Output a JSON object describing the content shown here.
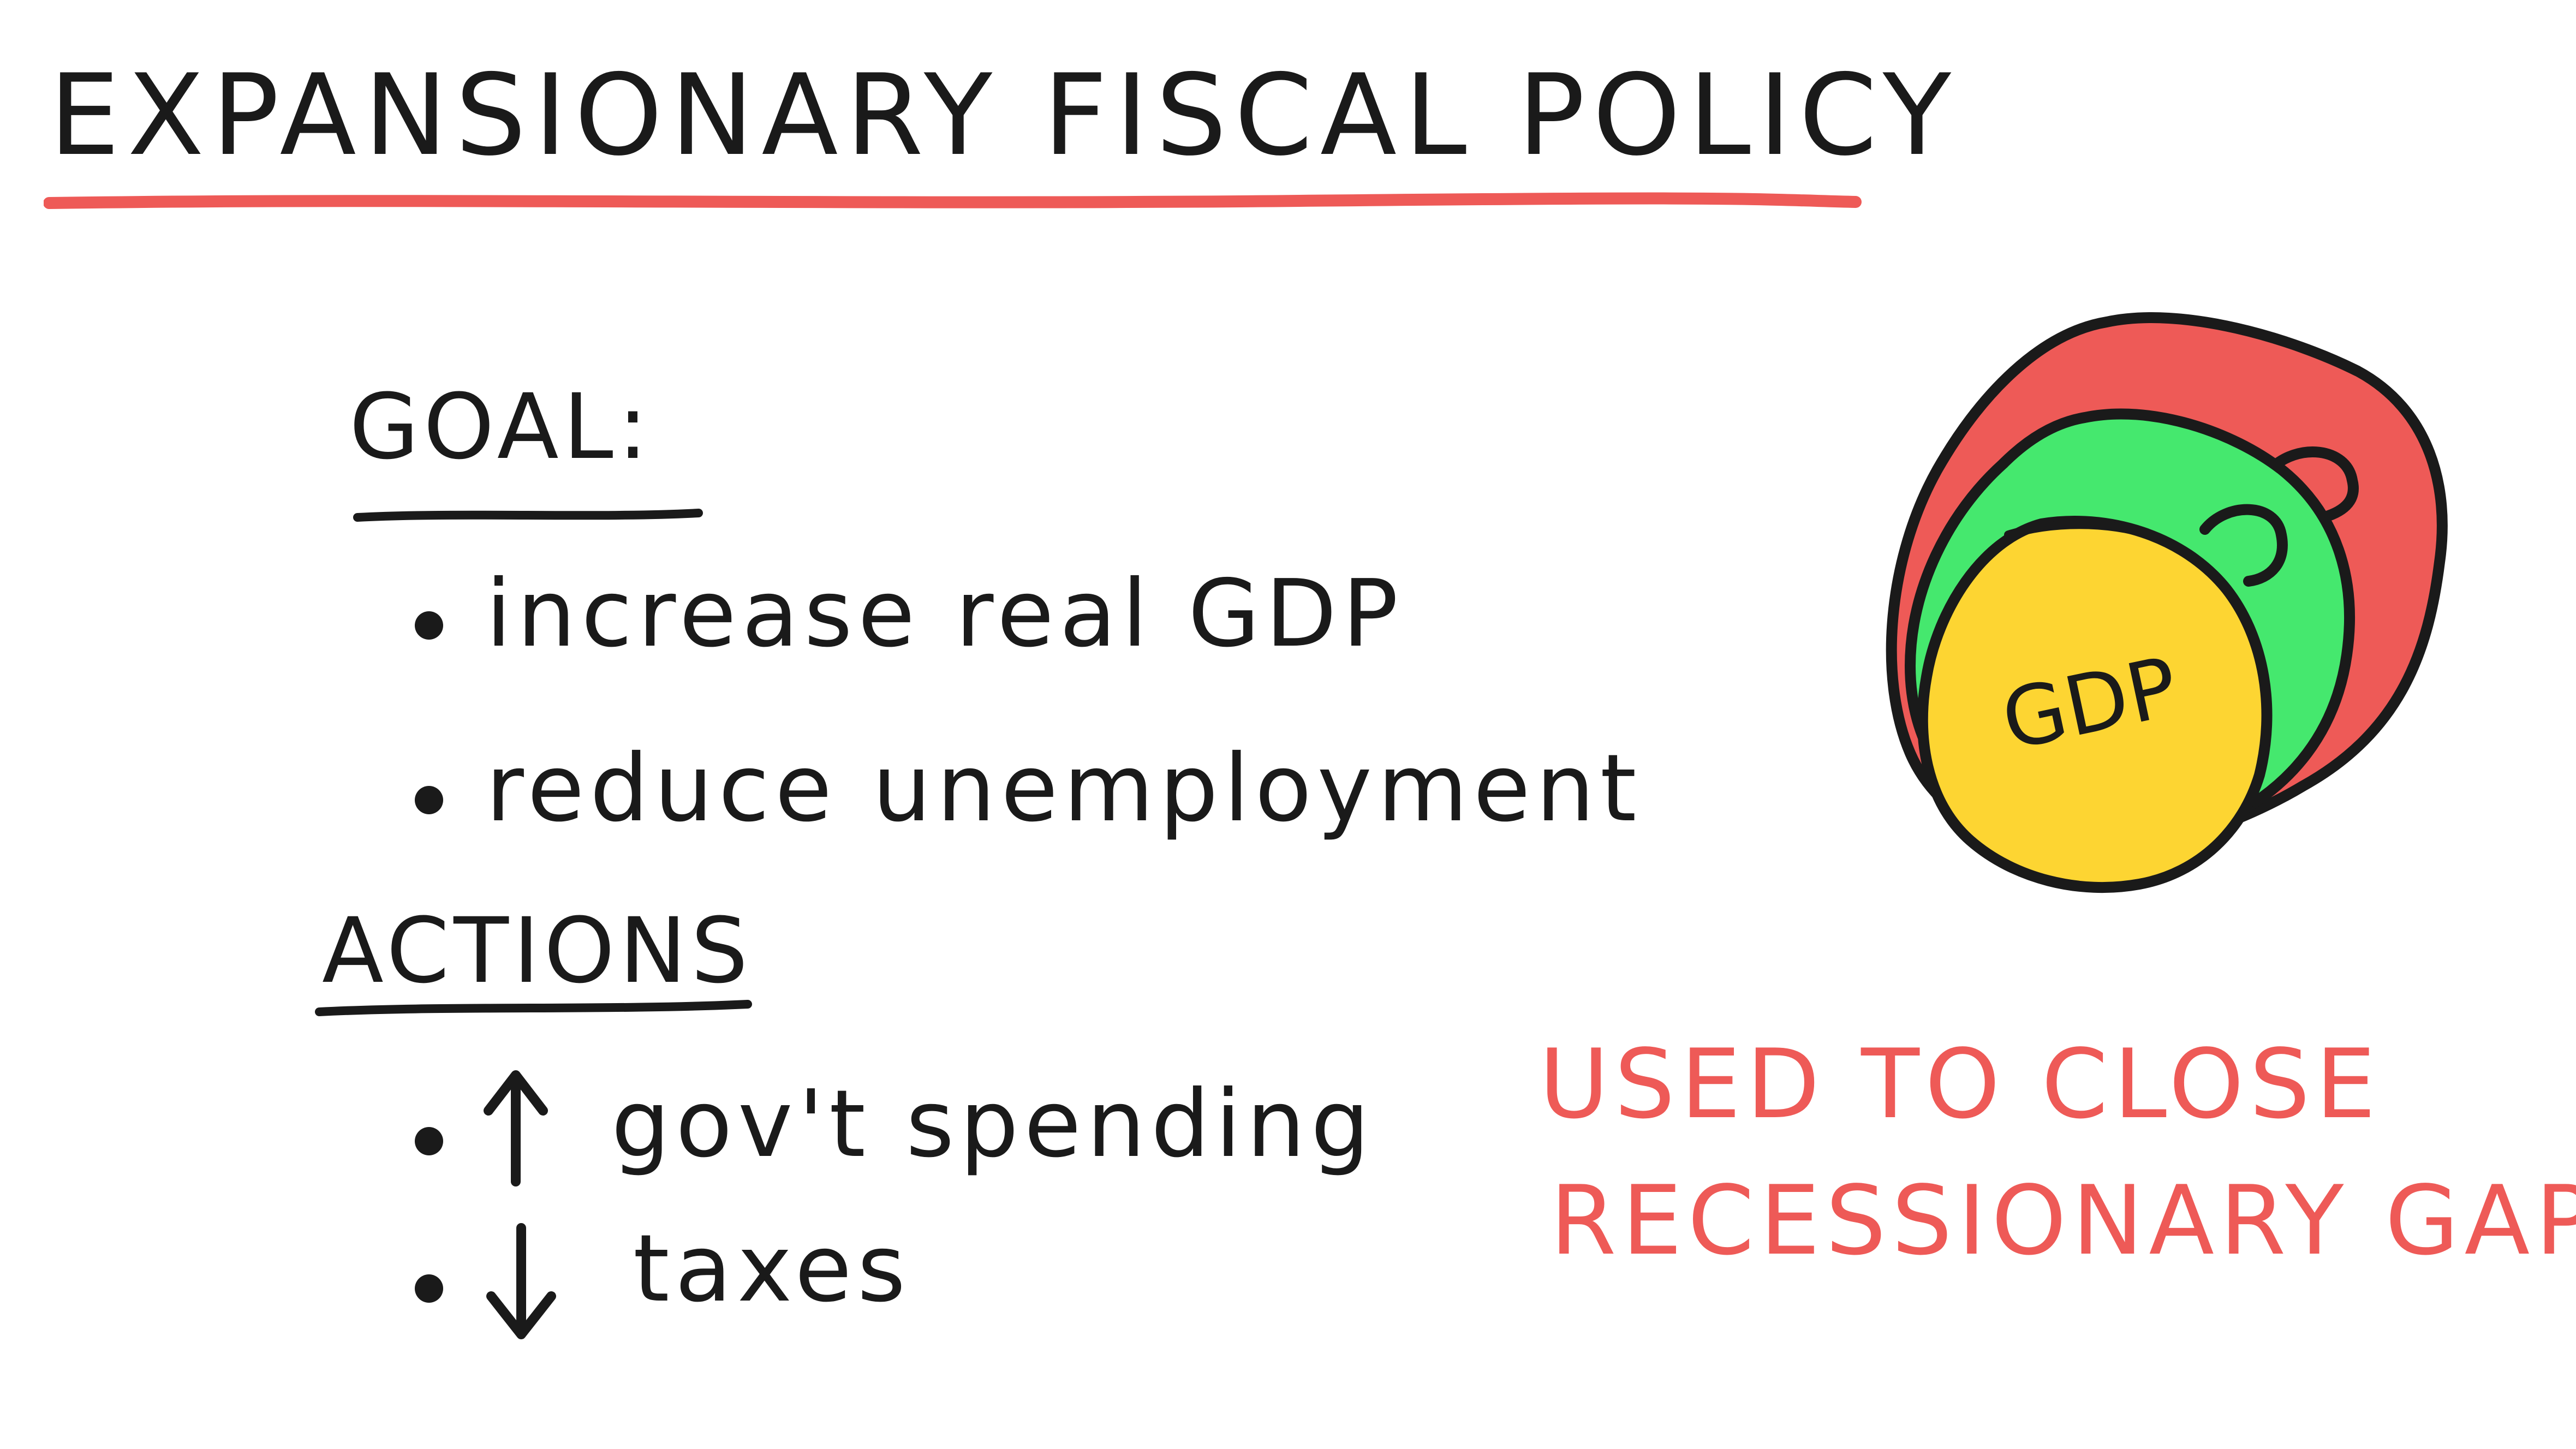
{
  "title": "EXPANSIONARY FISCAL POLICY",
  "goal": {
    "heading": "GOAL:",
    "items": [
      "increase real GDP",
      "reduce unemployment"
    ]
  },
  "actions": {
    "heading": "ACTIONS",
    "items": [
      {
        "arrow": "up-arrow-icon",
        "text": "gov't spending"
      },
      {
        "arrow": "down-arrow-icon",
        "text": "taxes"
      }
    ]
  },
  "note": {
    "line1": "USED TO CLOSE",
    "line2": "RECESSIONARY GAP"
  },
  "illustration": {
    "label": "GDP",
    "colors": {
      "outer": "#ee5a57",
      "middle": "#45e86e",
      "inner": "#fdd532",
      "ink": "#1a1a1a"
    }
  },
  "colors": {
    "accent": "#ee5a57",
    "ink": "#1a1a1a",
    "background": "#ffffff"
  }
}
